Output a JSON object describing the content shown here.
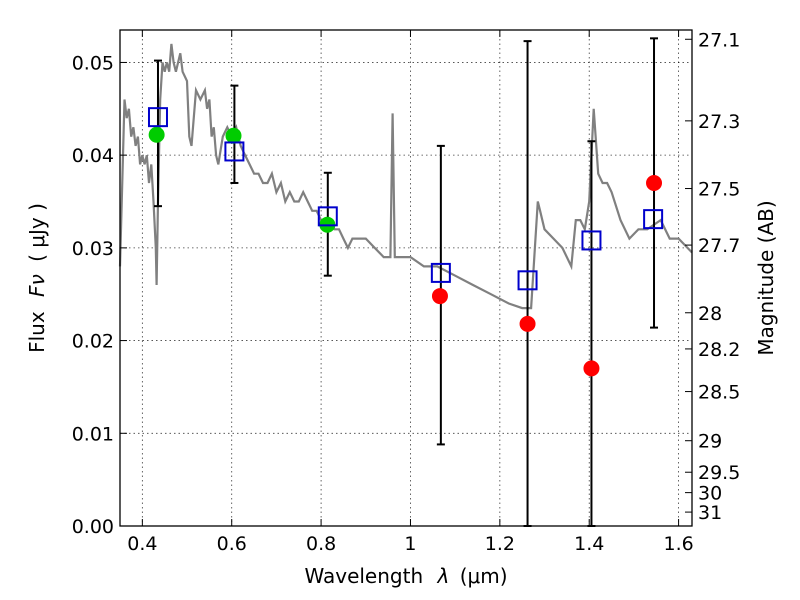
{
  "chart_data": {
    "type": "scatter",
    "xlabel": "Wavelength",
    "xlabel_symbol": "λ",
    "xlabel_unit": "(μm)",
    "ylabel": "Flux",
    "ylabel_symbol": "Fν",
    "ylabel_unit": "( μJy )",
    "right_ylabel": "Magnitude (AB)",
    "xlim": [
      0.35,
      1.63
    ],
    "ylim": [
      0.0,
      0.0535
    ],
    "grid": true,
    "legend": "none",
    "x_ticks": [
      0.4,
      0.6,
      0.8,
      1.0,
      1.2,
      1.4,
      1.6
    ],
    "x_tick_labels": [
      "0.4",
      "0.6",
      "0.8",
      "1",
      "1.2",
      "1.4",
      "1.6"
    ],
    "y_ticks": [
      0.0,
      0.01,
      0.02,
      0.03,
      0.04,
      0.05
    ],
    "y_tick_labels": [
      "0.00",
      "0.01",
      "0.02",
      "0.03",
      "0.04",
      "0.05"
    ],
    "right_ticks": [
      {
        "label": "27.1",
        "flux": 0.0525
      },
      {
        "label": "27.3",
        "flux": 0.0437
      },
      {
        "label": "27.5",
        "flux": 0.0364
      },
      {
        "label": "27.7",
        "flux": 0.0303
      },
      {
        "label": "28",
        "flux": 0.023
      },
      {
        "label": "28.2",
        "flux": 0.0191
      },
      {
        "label": "28.5",
        "flux": 0.0145
      },
      {
        "label": "29",
        "flux": 0.0092
      },
      {
        "label": "29.5",
        "flux": 0.0058
      },
      {
        "label": "30",
        "flux": 0.0036
      },
      {
        "label": "31",
        "flux": 0.0015
      }
    ],
    "series": [
      {
        "kind": "model-spectrum",
        "color": "#808080",
        "points": [
          [
            0.35,
            0.028
          ],
          [
            0.36,
            0.046
          ],
          [
            0.365,
            0.044
          ],
          [
            0.37,
            0.045
          ],
          [
            0.375,
            0.042
          ],
          [
            0.38,
            0.043
          ],
          [
            0.385,
            0.041
          ],
          [
            0.39,
            0.042
          ],
          [
            0.395,
            0.039
          ],
          [
            0.4,
            0.04
          ],
          [
            0.405,
            0.039
          ],
          [
            0.41,
            0.04
          ],
          [
            0.415,
            0.037
          ],
          [
            0.42,
            0.039
          ],
          [
            0.425,
            0.035
          ],
          [
            0.43,
            0.03
          ],
          [
            0.432,
            0.026
          ],
          [
            0.435,
            0.035
          ],
          [
            0.44,
            0.046
          ],
          [
            0.445,
            0.05
          ],
          [
            0.45,
            0.049
          ],
          [
            0.455,
            0.05
          ],
          [
            0.46,
            0.049
          ],
          [
            0.465,
            0.052
          ],
          [
            0.47,
            0.05
          ],
          [
            0.475,
            0.049
          ],
          [
            0.48,
            0.05
          ],
          [
            0.485,
            0.051
          ],
          [
            0.49,
            0.049
          ],
          [
            0.5,
            0.048
          ],
          [
            0.505,
            0.042
          ],
          [
            0.51,
            0.041
          ],
          [
            0.52,
            0.047
          ],
          [
            0.53,
            0.046
          ],
          [
            0.54,
            0.047
          ],
          [
            0.545,
            0.045
          ],
          [
            0.55,
            0.046
          ],
          [
            0.555,
            0.042
          ],
          [
            0.56,
            0.043
          ],
          [
            0.565,
            0.04
          ],
          [
            0.57,
            0.039
          ],
          [
            0.58,
            0.042
          ],
          [
            0.59,
            0.043
          ],
          [
            0.6,
            0.042
          ],
          [
            0.61,
            0.043
          ],
          [
            0.62,
            0.041
          ],
          [
            0.63,
            0.04
          ],
          [
            0.64,
            0.039
          ],
          [
            0.65,
            0.038
          ],
          [
            0.66,
            0.038
          ],
          [
            0.67,
            0.037
          ],
          [
            0.68,
            0.037
          ],
          [
            0.69,
            0.038
          ],
          [
            0.7,
            0.036
          ],
          [
            0.71,
            0.037
          ],
          [
            0.72,
            0.035
          ],
          [
            0.73,
            0.036
          ],
          [
            0.74,
            0.035
          ],
          [
            0.75,
            0.035
          ],
          [
            0.76,
            0.036
          ],
          [
            0.77,
            0.035
          ],
          [
            0.78,
            0.034
          ],
          [
            0.79,
            0.034
          ],
          [
            0.8,
            0.033
          ],
          [
            0.81,
            0.033
          ],
          [
            0.82,
            0.033
          ],
          [
            0.83,
            0.032
          ],
          [
            0.84,
            0.032
          ],
          [
            0.85,
            0.031
          ],
          [
            0.86,
            0.03
          ],
          [
            0.87,
            0.031
          ],
          [
            0.88,
            0.031
          ],
          [
            0.9,
            0.031
          ],
          [
            0.92,
            0.03
          ],
          [
            0.94,
            0.029
          ],
          [
            0.955,
            0.029
          ],
          [
            0.96,
            0.0445
          ],
          [
            0.965,
            0.029
          ],
          [
            0.98,
            0.029
          ],
          [
            1.0,
            0.029
          ],
          [
            1.03,
            0.028
          ],
          [
            1.06,
            0.028
          ],
          [
            1.1,
            0.027
          ],
          [
            1.14,
            0.026
          ],
          [
            1.18,
            0.025
          ],
          [
            1.22,
            0.024
          ],
          [
            1.25,
            0.0235
          ],
          [
            1.27,
            0.0235
          ],
          [
            1.285,
            0.035
          ],
          [
            1.29,
            0.034
          ],
          [
            1.3,
            0.032
          ],
          [
            1.32,
            0.031
          ],
          [
            1.34,
            0.03
          ],
          [
            1.36,
            0.028
          ],
          [
            1.37,
            0.033
          ],
          [
            1.38,
            0.033
          ],
          [
            1.39,
            0.032
          ],
          [
            1.4,
            0.035
          ],
          [
            1.41,
            0.045
          ],
          [
            1.42,
            0.038
          ],
          [
            1.43,
            0.037
          ],
          [
            1.44,
            0.037
          ],
          [
            1.45,
            0.036
          ],
          [
            1.47,
            0.033
          ],
          [
            1.49,
            0.031
          ],
          [
            1.51,
            0.032
          ],
          [
            1.53,
            0.032
          ],
          [
            1.56,
            0.033
          ],
          [
            1.58,
            0.031
          ],
          [
            1.6,
            0.031
          ],
          [
            1.63,
            0.0295
          ]
        ]
      },
      {
        "kind": "observed-green",
        "color": "#00cc00",
        "points": [
          [
            0.432,
            0.0422
          ],
          [
            0.604,
            0.0421
          ],
          [
            0.814,
            0.0325
          ]
        ]
      },
      {
        "kind": "observed-red",
        "color": "#ff0000",
        "points": [
          [
            1.066,
            0.0248
          ],
          [
            1.262,
            0.0218
          ],
          [
            1.405,
            0.017
          ],
          [
            1.545,
            0.037
          ]
        ]
      },
      {
        "kind": "synthetic-squares",
        "color": "#0000cc",
        "points": [
          [
            0.435,
            0.0441
          ],
          [
            0.606,
            0.0404
          ],
          [
            0.815,
            0.0334
          ],
          [
            1.068,
            0.0273
          ],
          [
            1.262,
            0.0265
          ],
          [
            1.405,
            0.0308
          ],
          [
            1.543,
            0.0331
          ]
        ]
      },
      {
        "kind": "error-bars",
        "color": "#000000",
        "points": [
          {
            "x": 0.435,
            "y": 0.0422,
            "low": 0.0345,
            "high": 0.0502
          },
          {
            "x": 0.606,
            "y": 0.0421,
            "low": 0.037,
            "high": 0.0475
          },
          {
            "x": 0.815,
            "y": 0.0325,
            "low": 0.027,
            "high": 0.0381
          },
          {
            "x": 1.068,
            "y": 0.0248,
            "low": 0.0088,
            "high": 0.041
          },
          {
            "x": 1.262,
            "y": 0.0218,
            "low": 0.0,
            "high": 0.0523
          },
          {
            "x": 1.405,
            "y": 0.017,
            "low": 0.0,
            "high": 0.0415
          },
          {
            "x": 1.545,
            "y": 0.037,
            "low": 0.0214,
            "high": 0.0526
          }
        ]
      }
    ]
  }
}
